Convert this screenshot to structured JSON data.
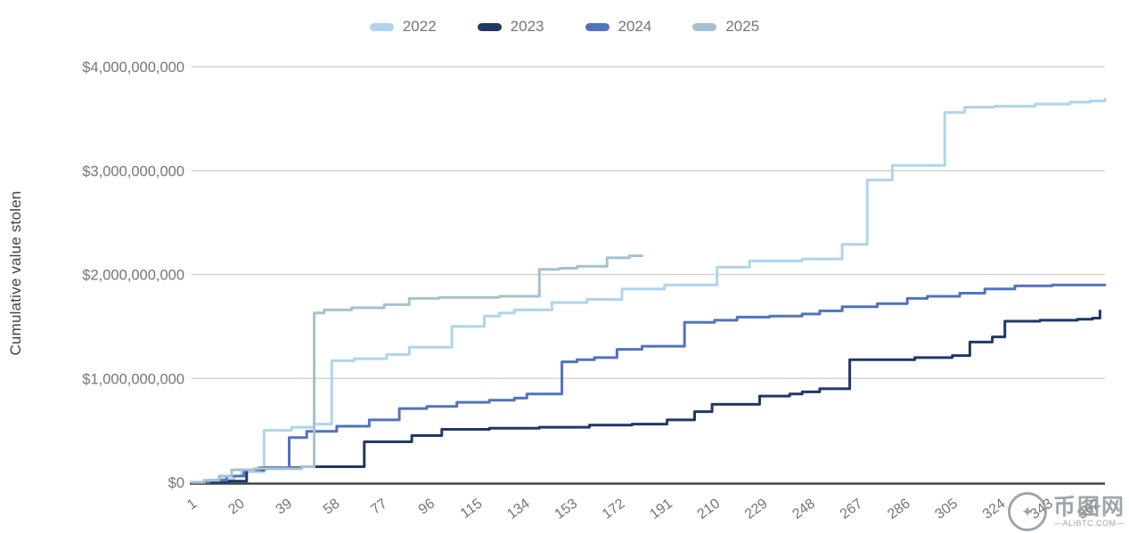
{
  "y_axis": {
    "title": "Cumulative value stolen",
    "tick_values": [
      0,
      1,
      2,
      3,
      4
    ],
    "tick_labels": [
      "$0",
      "$1,000,000,000",
      "$2,000,000,000",
      "$3,000,000,000",
      "$4,000,000,000"
    ]
  },
  "x_axis": {
    "tick_days": [
      1,
      20,
      39,
      58,
      77,
      96,
      115,
      134,
      153,
      172,
      191,
      210,
      229,
      248,
      267,
      286,
      305,
      324,
      343,
      362
    ]
  },
  "watermark": {
    "site_name": "币图网",
    "site_url": "—ALIBTC.COM—",
    "logo_star": "✦"
  },
  "chart_data": {
    "type": "line",
    "step": true,
    "title": "",
    "xlabel": "",
    "ylabel": "Cumulative value stolen",
    "x_unit": "day of year",
    "y_unit": "USD",
    "values_unit": "billion USD",
    "xlim": [
      1,
      366
    ],
    "ylim_billions": [
      0,
      4
    ],
    "grid": "horizontal",
    "legend_position": "top-center",
    "colors": {
      "grid": "#cdcdcd",
      "axis_line": "#424242",
      "tick_text": "#757575"
    },
    "series": [
      {
        "name": "2022",
        "color": "#aed5ec",
        "points": [
          [
            1,
            0
          ],
          [
            6,
            0.01
          ],
          [
            12,
            0.03
          ],
          [
            18,
            0.06
          ],
          [
            21,
            0.1
          ],
          [
            30,
            0.5
          ],
          [
            41,
            0.53
          ],
          [
            50,
            0.56
          ],
          [
            57,
            1.17
          ],
          [
            66,
            1.19
          ],
          [
            79,
            1.23
          ],
          [
            88,
            1.3
          ],
          [
            105,
            1.5
          ],
          [
            118,
            1.6
          ],
          [
            124,
            1.63
          ],
          [
            130,
            1.66
          ],
          [
            145,
            1.73
          ],
          [
            159,
            1.76
          ],
          [
            173,
            1.86
          ],
          [
            190,
            1.9
          ],
          [
            211,
            2.07
          ],
          [
            224,
            2.13
          ],
          [
            245,
            2.15
          ],
          [
            261,
            2.29
          ],
          [
            271,
            2.91
          ],
          [
            281,
            3.05
          ],
          [
            302,
            3.56
          ],
          [
            310,
            3.61
          ],
          [
            322,
            3.62
          ],
          [
            338,
            3.64
          ],
          [
            352,
            3.66
          ],
          [
            360,
            3.67
          ],
          [
            366,
            3.69
          ]
        ]
      },
      {
        "name": "2023",
        "color": "#1f3864",
        "points": [
          [
            1,
            0
          ],
          [
            10,
            0.005
          ],
          [
            16,
            0.01
          ],
          [
            23,
            0.12
          ],
          [
            30,
            0.14
          ],
          [
            45,
            0.15
          ],
          [
            70,
            0.39
          ],
          [
            89,
            0.45
          ],
          [
            101,
            0.51
          ],
          [
            120,
            0.52
          ],
          [
            140,
            0.53
          ],
          [
            160,
            0.55
          ],
          [
            177,
            0.56
          ],
          [
            191,
            0.6
          ],
          [
            202,
            0.68
          ],
          [
            209,
            0.75
          ],
          [
            228,
            0.83
          ],
          [
            240,
            0.85
          ],
          [
            245,
            0.87
          ],
          [
            252,
            0.9
          ],
          [
            264,
            1.18
          ],
          [
            290,
            1.2
          ],
          [
            305,
            1.22
          ],
          [
            312,
            1.35
          ],
          [
            321,
            1.4
          ],
          [
            326,
            1.55
          ],
          [
            340,
            1.56
          ],
          [
            355,
            1.57
          ],
          [
            361,
            1.58
          ],
          [
            364,
            1.65
          ]
        ]
      },
      {
        "name": "2024",
        "color": "#5272c0",
        "points": [
          [
            1,
            0
          ],
          [
            8,
            0.02
          ],
          [
            15,
            0.06
          ],
          [
            22,
            0.12
          ],
          [
            28,
            0.14
          ],
          [
            40,
            0.43
          ],
          [
            47,
            0.49
          ],
          [
            59,
            0.54
          ],
          [
            72,
            0.6
          ],
          [
            84,
            0.71
          ],
          [
            95,
            0.73
          ],
          [
            107,
            0.77
          ],
          [
            120,
            0.79
          ],
          [
            130,
            0.81
          ],
          [
            135,
            0.85
          ],
          [
            149,
            1.16
          ],
          [
            155,
            1.18
          ],
          [
            162,
            1.2
          ],
          [
            171,
            1.28
          ],
          [
            181,
            1.31
          ],
          [
            198,
            1.54
          ],
          [
            210,
            1.56
          ],
          [
            219,
            1.59
          ],
          [
            232,
            1.6
          ],
          [
            245,
            1.62
          ],
          [
            252,
            1.65
          ],
          [
            261,
            1.69
          ],
          [
            275,
            1.72
          ],
          [
            287,
            1.77
          ],
          [
            295,
            1.79
          ],
          [
            308,
            1.82
          ],
          [
            318,
            1.86
          ],
          [
            330,
            1.89
          ],
          [
            345,
            1.9
          ],
          [
            366,
            1.9
          ]
        ]
      },
      {
        "name": "2025",
        "color": "#a4c2ce",
        "points": [
          [
            1,
            0
          ],
          [
            6,
            0.02
          ],
          [
            12,
            0.06
          ],
          [
            17,
            0.12
          ],
          [
            26,
            0.13
          ],
          [
            45,
            0.15
          ],
          [
            50,
            1.63
          ],
          [
            54,
            1.66
          ],
          [
            65,
            1.68
          ],
          [
            78,
            1.71
          ],
          [
            88,
            1.77
          ],
          [
            100,
            1.78
          ],
          [
            124,
            1.79
          ],
          [
            140,
            2.05
          ],
          [
            148,
            2.06
          ],
          [
            155,
            2.08
          ],
          [
            167,
            2.16
          ],
          [
            176,
            2.18
          ],
          [
            181,
            2.18
          ]
        ]
      }
    ]
  }
}
